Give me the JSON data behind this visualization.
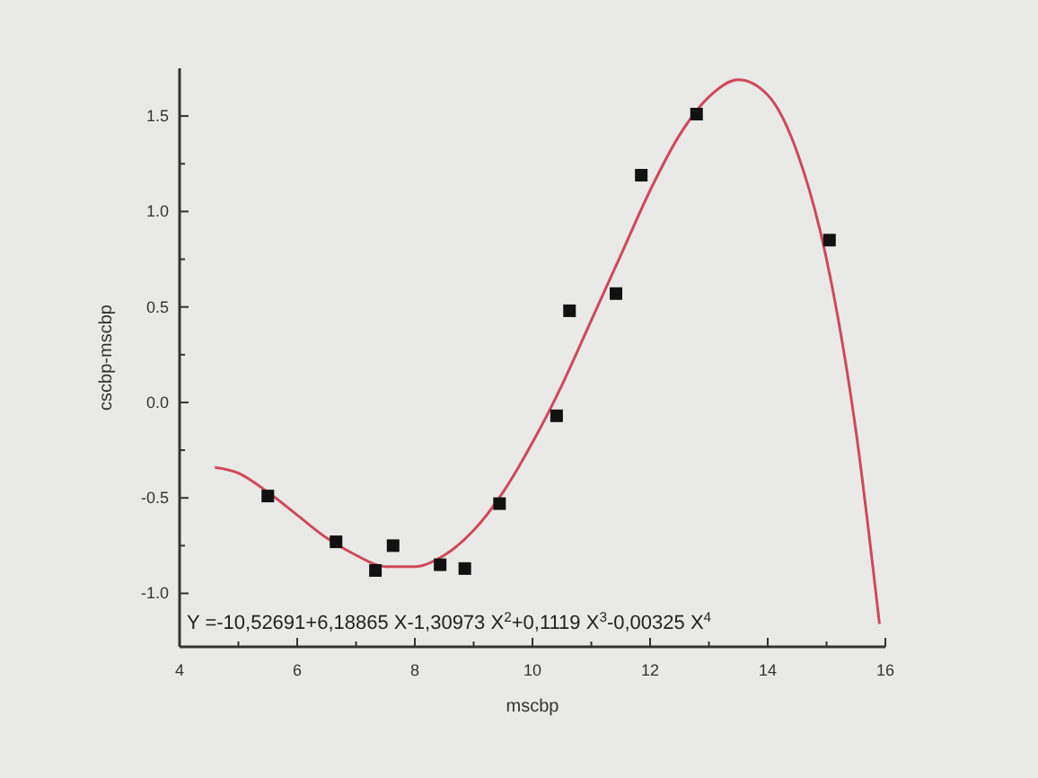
{
  "chart_data": {
    "type": "scatter",
    "xlabel": "mscbp",
    "ylabel": "cscbp-mscbp",
    "xlim": [
      4,
      16
    ],
    "ylim": [
      -1.28,
      1.75
    ],
    "xticks": [
      4,
      {
        "value": 5,
        "label": null
      },
      6,
      {
        "value": 7,
        "label": null
      },
      8,
      {
        "value": 9,
        "label": null
      },
      10,
      {
        "value": 11,
        "label": null
      },
      12,
      {
        "value": 13,
        "label": null
      },
      14,
      {
        "value": 15,
        "label": null
      },
      16
    ],
    "yticks": [
      {
        "value": -1,
        "label": "-1.0"
      },
      {
        "value": -0.75,
        "label": null
      },
      {
        "value": -0.5,
        "label": "-0.5"
      },
      {
        "value": -0.25,
        "label": null
      },
      {
        "value": 0,
        "label": "0.0"
      },
      {
        "value": 0.25,
        "label": null
      },
      {
        "value": 0.5,
        "label": "0.5"
      },
      {
        "value": 0.75,
        "label": null
      },
      {
        "value": 1,
        "label": "1.0"
      },
      {
        "value": 1.25,
        "label": null
      },
      {
        "value": 1.5,
        "label": "1.5"
      }
    ],
    "grid": false,
    "annotations": [
      "Y =-10,52691+6,18865 X-1,30973 X$^{2}$+0,1119 X$^{3}$-0,00325 X$^{4}$"
    ],
    "series": [
      {
        "color": "#111111",
        "marker": "square",
        "x": [
          5.5,
          6.66,
          7.33,
          7.63,
          8.43,
          8.85,
          9.44,
          10.41,
          10.63,
          11.42,
          11.85,
          12.79,
          15.05
        ],
        "values": [
          -0.49,
          -0.73,
          -0.88,
          -0.75,
          -0.85,
          -0.87,
          -0.53,
          -0.07,
          0.48,
          0.57,
          1.19,
          1.51,
          0.85
        ]
      },
      {
        "type": "line",
        "color": "#d0485a",
        "line_style": "solid",
        "marker": "none",
        "x": [
          4.6,
          5,
          5.5,
          6,
          6.5,
          7,
          7.5,
          8,
          8.5,
          9,
          9.5,
          10,
          10.5,
          11,
          11.5,
          12,
          12.5,
          13,
          13.5,
          14,
          14.5,
          15,
          15.5,
          15.9
        ],
        "values": [
          -0.34,
          -0.37,
          -0.47,
          -0.59,
          -0.71,
          -0.8,
          -0.86,
          -0.86,
          -0.8,
          -0.67,
          -0.47,
          -0.21,
          0.09,
          0.43,
          0.77,
          1.11,
          1.4,
          1.6,
          1.69,
          1.61,
          1.31,
          0.75,
          -0.15,
          -1.16
        ]
      }
    ]
  }
}
